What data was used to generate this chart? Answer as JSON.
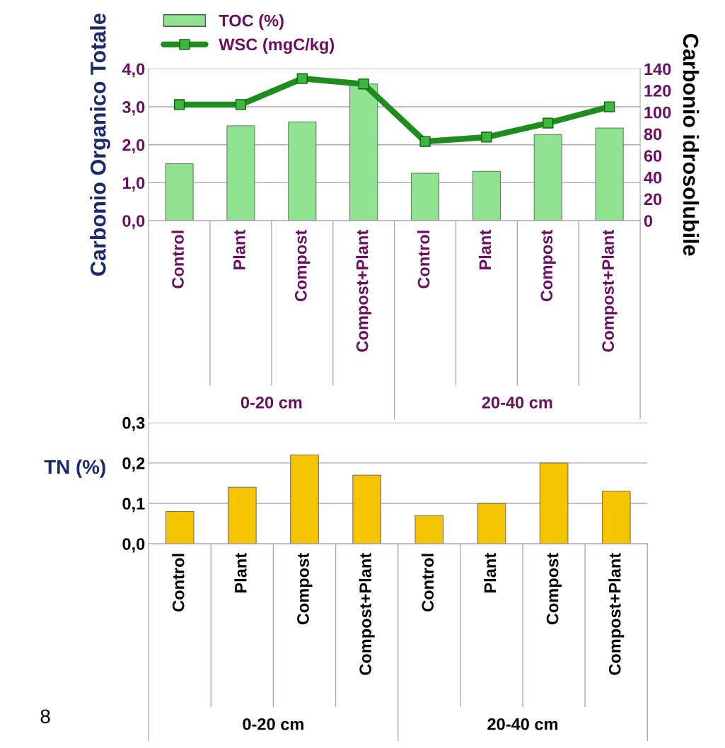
{
  "chart_data": [
    {
      "type": "bar",
      "ylabel": "Carbonio Organico Totale",
      "y2label": "Carbonio idrosolubile",
      "categories": [
        "Control",
        "Plant",
        "Compost",
        "Compost+Plant",
        "Control",
        "Plant",
        "Compost",
        "Compost+Plant"
      ],
      "series": [
        {
          "name": "TOC (%)",
          "type": "bar",
          "color": "#8fe38f",
          "values": [
            1.5,
            2.5,
            2.6,
            3.6,
            1.25,
            1.3,
            2.27,
            2.44
          ]
        },
        {
          "name": "WSC (mgC/kg)",
          "type": "line",
          "axis": "y2",
          "color": "#1e8c1e",
          "marker": "square",
          "values": [
            107,
            107,
            131,
            126,
            73,
            77,
            90,
            105
          ]
        }
      ],
      "ylim": [
        0,
        4
      ],
      "yticks": [
        {
          "value": 0,
          "label": "0,0"
        },
        {
          "value": 1,
          "label": "1,0"
        },
        {
          "value": 2,
          "label": "2,0"
        },
        {
          "value": 3,
          "label": "3,0"
        },
        {
          "value": 4,
          "label": "4,0"
        }
      ],
      "y2lim": [
        0,
        140
      ],
      "y2ticks": [
        0,
        20,
        40,
        60,
        80,
        100,
        120,
        140
      ],
      "grid": "y",
      "legend": "top left",
      "annotations": [
        "0-20 cm",
        "20-40 cm"
      ]
    },
    {
      "type": "bar",
      "ylabel": "TN (%)",
      "categories": [
        "Control",
        "Plant",
        "Compost",
        "Compost+Plant",
        "Control",
        "Plant",
        "Compost",
        "Compost+Plant"
      ],
      "values": [
        0.08,
        0.14,
        0.22,
        0.17,
        0.07,
        0.1,
        0.2,
        0.13
      ],
      "color": "#f5c400",
      "ylim": [
        0,
        0.3
      ],
      "yticks": [
        {
          "value": 0,
          "label": "0,0"
        },
        {
          "value": 0.1,
          "label": "0,1"
        },
        {
          "value": 0.2,
          "label": "0,2"
        },
        {
          "value": 0.3,
          "label": "0,3"
        }
      ],
      "grid": "y",
      "annotations": [
        "0-20 cm",
        "20-40 cm",
        "8"
      ]
    }
  ]
}
